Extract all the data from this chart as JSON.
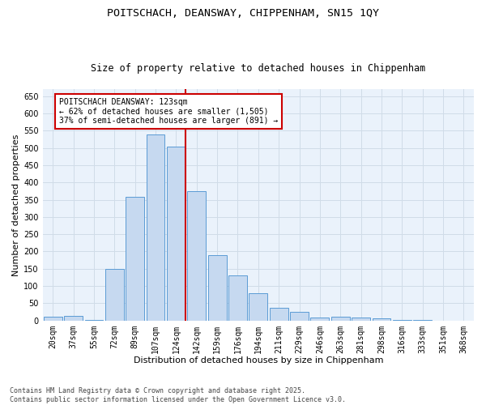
{
  "title1": "POITSCHACH, DEANSWAY, CHIPPENHAM, SN15 1QY",
  "title2": "Size of property relative to detached houses in Chippenham",
  "xlabel": "Distribution of detached houses by size in Chippenham",
  "ylabel": "Number of detached properties",
  "categories": [
    "20sqm",
    "37sqm",
    "55sqm",
    "72sqm",
    "89sqm",
    "107sqm",
    "124sqm",
    "142sqm",
    "159sqm",
    "176sqm",
    "194sqm",
    "211sqm",
    "229sqm",
    "246sqm",
    "263sqm",
    "281sqm",
    "298sqm",
    "316sqm",
    "333sqm",
    "351sqm",
    "368sqm"
  ],
  "values": [
    10,
    13,
    2,
    150,
    358,
    540,
    505,
    375,
    190,
    130,
    78,
    38,
    25,
    8,
    12,
    8,
    6,
    2,
    1,
    0,
    0
  ],
  "bar_color": "#c6d9f0",
  "bar_edge_color": "#5b9bd5",
  "vline_index": 6,
  "vline_color": "#cc0000",
  "annotation_text": "POITSCHACH DEANSWAY: 123sqm\n← 62% of detached houses are smaller (1,505)\n37% of semi-detached houses are larger (891) →",
  "annotation_box_color": "#ffffff",
  "annotation_box_edge": "#cc0000",
  "grid_color": "#d0dce8",
  "bg_color": "#eaf2fb",
  "ylim": [
    0,
    670
  ],
  "yticks": [
    0,
    50,
    100,
    150,
    200,
    250,
    300,
    350,
    400,
    450,
    500,
    550,
    600,
    650
  ],
  "footer_text": "Contains HM Land Registry data © Crown copyright and database right 2025.\nContains public sector information licensed under the Open Government Licence v3.0.",
  "title1_fontsize": 9.5,
  "title2_fontsize": 8.5,
  "xlabel_fontsize": 8,
  "ylabel_fontsize": 8,
  "tick_fontsize": 7,
  "annotation_fontsize": 7,
  "footer_fontsize": 6
}
